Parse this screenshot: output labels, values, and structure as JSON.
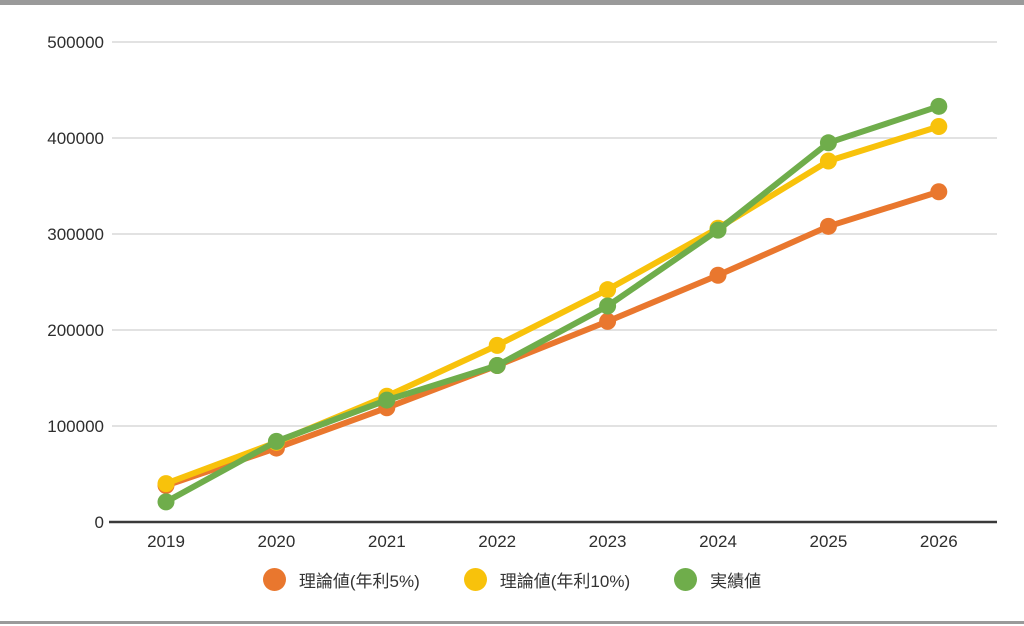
{
  "frame": {
    "background": "#ffffff",
    "edge_bar_color": "#9a9a9a"
  },
  "chart_data": {
    "type": "line",
    "title": "",
    "xlabel": "",
    "ylabel": "",
    "categories": [
      "2019",
      "2020",
      "2021",
      "2022",
      "2023",
      "2024",
      "2025",
      "2026"
    ],
    "series": [
      {
        "id": "theoretical-5pct",
        "name": "理論値(年利5%)",
        "color": "#E9772E",
        "values": [
          38000,
          77000,
          119000,
          163000,
          209000,
          257000,
          308000,
          344000
        ]
      },
      {
        "id": "theoretical-10pct",
        "name": "理論値(年利10%)",
        "color": "#F8C20B",
        "values": [
          40000,
          83000,
          131000,
          184000,
          242000,
          306000,
          376000,
          412000
        ]
      },
      {
        "id": "actual",
        "name": "実績値",
        "color": "#6FAD4B",
        "values": [
          21000,
          84000,
          127000,
          163000,
          225000,
          304000,
          395000,
          433000
        ]
      }
    ],
    "ylim": [
      0,
      500000
    ],
    "yticks": [
      0,
      100000,
      200000,
      300000,
      400000,
      500000
    ],
    "ytick_labels": [
      "0",
      "100000",
      "200000",
      "300000",
      "400000",
      "500000"
    ],
    "grid": "horizontal",
    "grid_color": "#d8d8d8",
    "axis_color": "#3a3a3a",
    "text_color": "#2e2e2e",
    "legend_position": "bottom"
  }
}
